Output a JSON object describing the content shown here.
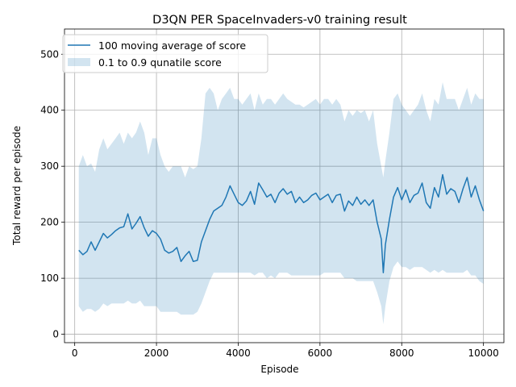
{
  "chart_data": {
    "type": "line",
    "title": "D3QN PER SpaceInvaders-v0 training result",
    "xlabel": "Episode",
    "ylabel": "Total reward per episode",
    "xlim": [
      -250,
      10500
    ],
    "ylim": [
      -15,
      545
    ],
    "xticks": [
      0,
      2000,
      4000,
      6000,
      8000,
      10000
    ],
    "yticks": [
      0,
      100,
      200,
      300,
      400,
      500
    ],
    "grid": true,
    "legend_position": "top-left",
    "colors": {
      "line": "#1f77b4",
      "band": "#1f77b4",
      "band_opacity": 0.2,
      "grid": "#b0b0b0"
    },
    "x": [
      100,
      200,
      300,
      400,
      500,
      600,
      700,
      800,
      900,
      1000,
      1100,
      1200,
      1300,
      1400,
      1500,
      1600,
      1700,
      1800,
      1900,
      2000,
      2100,
      2200,
      2300,
      2400,
      2500,
      2600,
      2700,
      2800,
      2900,
      3000,
      3100,
      3200,
      3300,
      3400,
      3500,
      3600,
      3700,
      3800,
      3900,
      4000,
      4100,
      4200,
      4300,
      4400,
      4500,
      4600,
      4700,
      4800,
      4900,
      5000,
      5100,
      5200,
      5300,
      5400,
      5500,
      5600,
      5700,
      5800,
      5900,
      6000,
      6100,
      6200,
      6300,
      6400,
      6500,
      6600,
      6700,
      6800,
      6900,
      7000,
      7100,
      7200,
      7300,
      7400,
      7500,
      7550,
      7600,
      7700,
      7800,
      7900,
      8000,
      8100,
      8200,
      8300,
      8400,
      8500,
      8600,
      8700,
      8800,
      8900,
      9000,
      9100,
      9200,
      9300,
      9400,
      9500,
      9600,
      9700,
      9800,
      9900,
      10000
    ],
    "series": [
      {
        "name": "100 moving average of score",
        "kind": "line",
        "values": [
          150,
          142,
          148,
          165,
          150,
          165,
          180,
          172,
          178,
          185,
          190,
          192,
          215,
          188,
          198,
          210,
          190,
          175,
          185,
          180,
          170,
          150,
          145,
          148,
          155,
          130,
          140,
          148,
          130,
          132,
          165,
          185,
          205,
          220,
          225,
          230,
          245,
          265,
          250,
          235,
          230,
          238,
          255,
          232,
          270,
          258,
          245,
          250,
          235,
          252,
          260,
          250,
          255,
          235,
          245,
          235,
          240,
          248,
          252,
          240,
          245,
          250,
          235,
          248,
          250,
          220,
          238,
          230,
          245,
          232,
          240,
          230,
          240,
          200,
          170,
          110,
          160,
          205,
          245,
          262,
          240,
          258,
          235,
          248,
          252,
          270,
          235,
          225,
          262,
          245,
          285,
          250,
          260,
          255,
          235,
          260,
          280,
          245,
          265,
          240,
          220
        ]
      },
      {
        "name": "0.1 to 0.9 qunatile score",
        "kind": "band",
        "low": [
          50,
          40,
          45,
          45,
          40,
          45,
          55,
          50,
          55,
          55,
          55,
          55,
          60,
          55,
          55,
          60,
          50,
          50,
          50,
          50,
          40,
          40,
          40,
          40,
          40,
          35,
          35,
          35,
          35,
          40,
          55,
          75,
          95,
          110,
          110,
          110,
          110,
          110,
          110,
          110,
          110,
          110,
          110,
          105,
          110,
          110,
          100,
          105,
          100,
          110,
          110,
          110,
          105,
          105,
          105,
          105,
          105,
          105,
          105,
          105,
          110,
          110,
          110,
          110,
          110,
          100,
          100,
          100,
          95,
          95,
          95,
          95,
          95,
          75,
          50,
          18,
          50,
          95,
          120,
          130,
          120,
          120,
          115,
          120,
          120,
          120,
          115,
          110,
          115,
          110,
          115,
          110,
          110,
          110,
          110,
          110,
          115,
          105,
          105,
          95,
          90
        ],
        "high": [
          300,
          320,
          300,
          305,
          290,
          330,
          350,
          330,
          340,
          350,
          360,
          340,
          360,
          350,
          360,
          380,
          360,
          320,
          350,
          350,
          320,
          300,
          290,
          300,
          300,
          300,
          280,
          300,
          295,
          300,
          350,
          430,
          440,
          430,
          400,
          420,
          430,
          440,
          420,
          420,
          410,
          420,
          430,
          400,
          430,
          410,
          420,
          420,
          410,
          420,
          430,
          420,
          415,
          410,
          410,
          405,
          410,
          415,
          420,
          410,
          420,
          420,
          410,
          420,
          410,
          380,
          400,
          390,
          400,
          395,
          400,
          380,
          400,
          340,
          300,
          280,
          310,
          360,
          420,
          430,
          410,
          400,
          390,
          400,
          410,
          430,
          400,
          380,
          420,
          410,
          450,
          420,
          420,
          420,
          400,
          420,
          440,
          410,
          430,
          420,
          420
        ]
      }
    ]
  }
}
